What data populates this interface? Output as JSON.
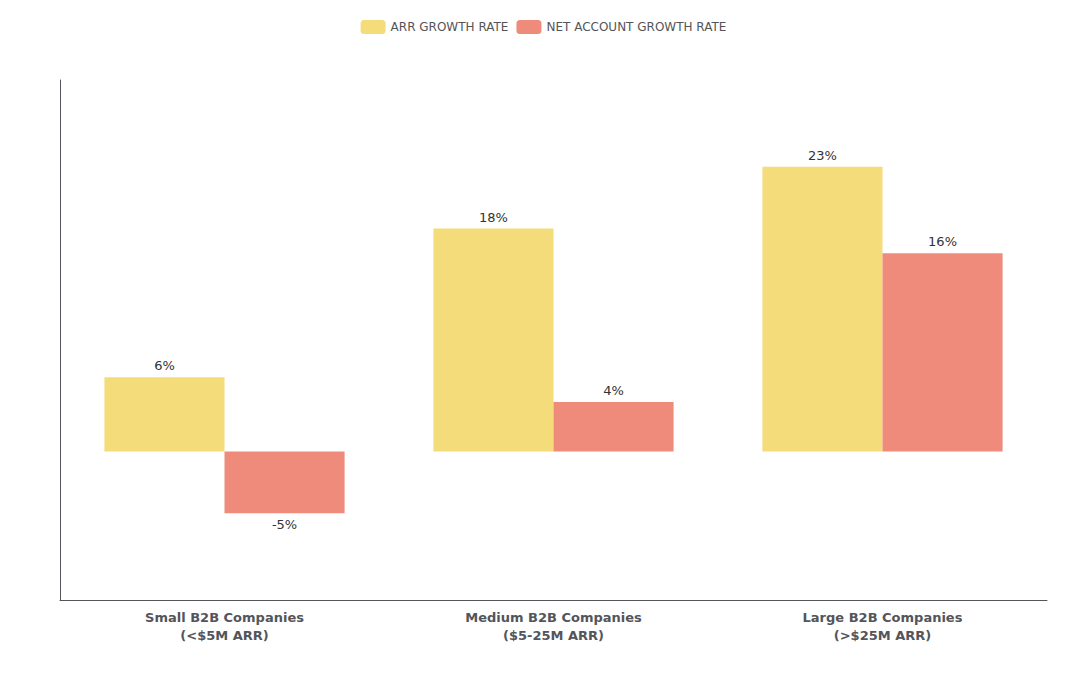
{
  "chart_data": {
    "type": "bar",
    "categories": [
      "Small B2B Companies\n(<$5M ARR)",
      "Medium B2B Companies\n($5-25M ARR)",
      "Large B2B Companies\n(>$25M ARR)"
    ],
    "series": [
      {
        "name": "ARR GROWTH RATE",
        "color": "#F5DC7A",
        "values": [
          6,
          18,
          23
        ],
        "value_labels": [
          "6%",
          "18%",
          "23%"
        ]
      },
      {
        "name": "NET ACCOUNT GROWTH RATE",
        "color": "#EE8B7A",
        "values": [
          -5,
          4,
          16
        ],
        "value_labels": [
          "-5%",
          "4%",
          "16%"
        ]
      }
    ],
    "ylim": [
      -12,
      30
    ],
    "tick_labels": "x",
    "data_labels": true,
    "legend": "top",
    "grid": false
  }
}
